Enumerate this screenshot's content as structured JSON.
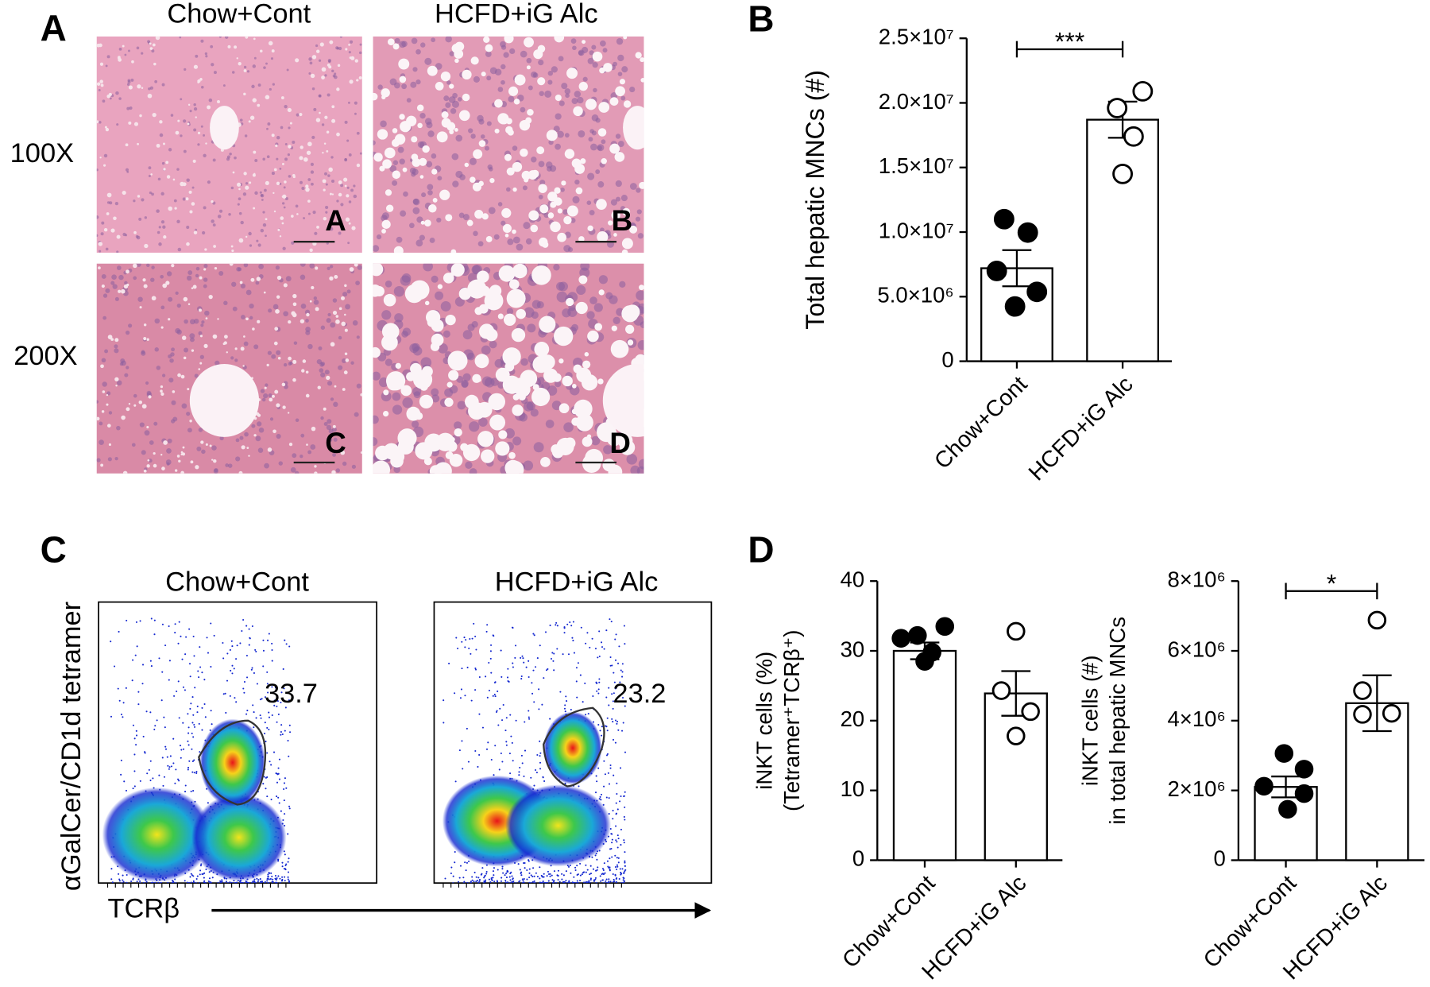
{
  "panels": {
    "letters": [
      "A",
      "B",
      "C",
      "D"
    ]
  },
  "histology": {
    "columns": [
      "Chow+Cont",
      "HCFD+iG Alc"
    ],
    "rows": [
      "100X",
      "200X"
    ],
    "image_letters": [
      "A",
      "B",
      "C",
      "D"
    ]
  },
  "flow": {
    "titles": [
      "Chow+Cont",
      "HCFD+iG Alc"
    ],
    "gate_values": [
      33.7,
      23.2
    ],
    "ylabel": "αGalCer/CD1d tetramer",
    "xlabel": "TCRβ"
  },
  "chart_data": [
    {
      "type": "bar",
      "ylabel": [
        "Total hepatic MNCs (#)"
      ],
      "categories": [
        "Chow+Cont",
        "HCFD+iG Alc"
      ],
      "values": [
        7200000,
        18700000
      ],
      "errors": [
        1400000,
        1400000
      ],
      "points": [
        [
          11000000,
          9960000,
          6990000,
          5370000,
          4240000
        ],
        [
          20900000,
          19600000,
          17400000,
          14500000
        ]
      ],
      "point_fill": [
        "#000000",
        "#ffffff"
      ],
      "color": "#ffffff",
      "ylim": [
        0,
        25000000
      ],
      "yticks": [
        0,
        {
          "value": 5000000,
          "label": "5.0×10⁶"
        },
        {
          "value": 10000000,
          "label": "1.0×10⁷"
        },
        {
          "value": 15000000,
          "label": "1.5×10⁷"
        },
        {
          "value": 20000000,
          "label": "2.0×10⁷"
        },
        {
          "value": 25000000,
          "label": "2.5×10⁷"
        }
      ],
      "significance": "***"
    },
    {
      "type": "bar",
      "ylabel": [
        "iNKT cells (%)",
        "(Tetramer⁺TCRβ⁺)"
      ],
      "categories": [
        "Chow+Cont",
        "HCFD+iG Alc"
      ],
      "values": [
        30.0,
        23.9
      ],
      "errors": [
        1.2,
        3.2
      ],
      "points": [
        [
          33.5,
          32.2,
          31.8,
          29.8,
          28.5
        ],
        [
          32.8,
          24.3,
          21.3,
          17.8
        ]
      ],
      "point_fill": [
        "#000000",
        "#ffffff"
      ],
      "color": "#ffffff",
      "ylim": [
        0,
        40
      ],
      "yticks": [
        0,
        10,
        20,
        30,
        40
      ]
    },
    {
      "type": "bar",
      "ylabel": [
        "iNKT cells (#)",
        "in total hepatic MNCs"
      ],
      "categories": [
        "Chow+Cont",
        "HCFD+iG Alc"
      ],
      "values": [
        2100000,
        4500000
      ],
      "errors": [
        300000,
        800000
      ],
      "points": [
        [
          3060000,
          2610000,
          2120000,
          1910000,
          1460000
        ],
        [
          6880000,
          4860000,
          4210000,
          4180000
        ]
      ],
      "point_fill": [
        "#000000",
        "#ffffff"
      ],
      "color": "#ffffff",
      "ylim": [
        0,
        8000000
      ],
      "yticks": [
        0,
        {
          "value": 2000000,
          "label": "2×10⁶"
        },
        {
          "value": 4000000,
          "label": "4×10⁶"
        },
        {
          "value": 6000000,
          "label": "6×10⁶"
        },
        {
          "value": 8000000,
          "label": "8×10⁶"
        }
      ],
      "significance": "*"
    }
  ]
}
